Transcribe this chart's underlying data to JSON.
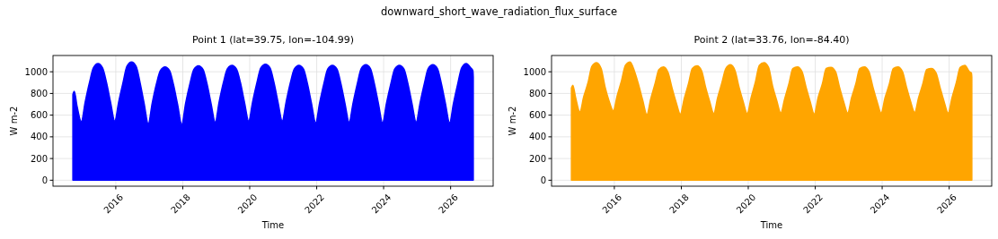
{
  "chart_data": [
    {
      "type": "area",
      "title": "Point 1 (lat=39.75, lon=-104.99)",
      "xlabel": "Time",
      "ylabel": "W m-2",
      "annotations": [
        "downward_short_wave_radiation_flux_surface"
      ],
      "x": [
        "2014-09-20",
        "2014-10-05",
        "2014-11-05",
        "2014-12-21",
        "2015-02-01",
        "2015-03-20",
        "2015-05-01",
        "2015-06-21",
        "2015-08-10",
        "2015-09-22",
        "2015-11-05",
        "2015-12-21",
        "2016-02-01",
        "2016-03-20",
        "2016-05-01",
        "2016-06-21",
        "2016-08-10",
        "2016-09-22",
        "2016-11-05",
        "2016-12-21",
        "2017-02-01",
        "2017-03-20",
        "2017-05-01",
        "2017-06-21",
        "2017-08-10",
        "2017-09-22",
        "2017-11-05",
        "2017-12-21",
        "2018-02-01",
        "2018-03-20",
        "2018-05-01",
        "2018-06-21",
        "2018-08-10",
        "2018-09-22",
        "2018-11-05",
        "2018-12-21",
        "2019-02-01",
        "2019-03-20",
        "2019-05-01",
        "2019-06-21",
        "2019-08-10",
        "2019-09-22",
        "2019-11-05",
        "2019-12-21",
        "2020-02-01",
        "2020-03-20",
        "2020-05-01",
        "2020-06-21",
        "2020-08-10",
        "2020-09-22",
        "2020-11-05",
        "2020-12-21",
        "2021-02-01",
        "2021-03-20",
        "2021-05-01",
        "2021-06-21",
        "2021-08-10",
        "2021-09-22",
        "2021-11-05",
        "2021-12-21",
        "2022-02-01",
        "2022-03-20",
        "2022-05-01",
        "2022-06-21",
        "2022-08-10",
        "2022-09-22",
        "2022-11-05",
        "2022-12-21",
        "2023-02-01",
        "2023-03-20",
        "2023-05-01",
        "2023-06-21",
        "2023-08-10",
        "2023-09-22",
        "2023-11-05",
        "2023-12-21",
        "2024-02-01",
        "2024-03-20",
        "2024-05-01",
        "2024-06-21",
        "2024-08-10",
        "2024-09-22",
        "2024-11-05",
        "2024-12-21",
        "2025-02-01",
        "2025-03-20",
        "2025-05-01",
        "2025-06-21",
        "2025-08-10",
        "2025-09-22",
        "2025-11-05",
        "2025-12-21",
        "2026-02-01",
        "2026-03-20",
        "2026-05-01",
        "2026-06-21",
        "2026-08-10",
        "2026-09-01",
        "2026-09-05"
      ],
      "series": [
        {
          "color": "#0000ff",
          "values": [
            790,
            820,
            680,
            540,
            720,
            900,
            1035,
            1075,
            1035,
            900,
            720,
            545,
            720,
            900,
            1050,
            1090,
            1050,
            900,
            710,
            520,
            710,
            890,
            1010,
            1045,
            1010,
            880,
            700,
            515,
            710,
            890,
            1020,
            1055,
            1020,
            890,
            710,
            535,
            720,
            900,
            1025,
            1060,
            1025,
            900,
            720,
            545,
            720,
            900,
            1035,
            1070,
            1035,
            900,
            720,
            545,
            720,
            900,
            1025,
            1060,
            1025,
            890,
            710,
            530,
            710,
            890,
            1025,
            1060,
            1025,
            890,
            710,
            535,
            710,
            890,
            1030,
            1065,
            1030,
            890,
            710,
            530,
            710,
            890,
            1025,
            1060,
            1025,
            890,
            710,
            535,
            710,
            890,
            1030,
            1065,
            1030,
            890,
            710,
            530,
            710,
            890,
            1035,
            1075,
            1035,
            1010,
            950
          ]
        }
      ],
      "xlim": [
        "2014-02-15",
        "2027-04-10"
      ],
      "xticks": [
        "2016",
        "2018",
        "2020",
        "2022",
        "2024",
        "2026"
      ],
      "ylim": [
        -55,
        1150
      ],
      "yticks": [
        0,
        200,
        400,
        600,
        800,
        1000
      ],
      "grid": true
    },
    {
      "type": "area",
      "title": "Point 2 (lat=33.76, lon=-84.40)",
      "xlabel": "Time",
      "ylabel": "W m-2",
      "x": [
        "2014-09-20",
        "2014-10-05",
        "2014-11-05",
        "2014-12-21",
        "2015-02-01",
        "2015-03-20",
        "2015-05-01",
        "2015-06-21",
        "2015-08-10",
        "2015-09-22",
        "2015-11-05",
        "2015-12-21",
        "2016-02-01",
        "2016-03-20",
        "2016-05-01",
        "2016-06-21",
        "2016-08-10",
        "2016-09-22",
        "2016-11-05",
        "2016-12-21",
        "2017-02-01",
        "2017-03-20",
        "2017-05-01",
        "2017-06-21",
        "2017-08-10",
        "2017-09-22",
        "2017-11-05",
        "2017-12-21",
        "2018-02-01",
        "2018-03-20",
        "2018-05-01",
        "2018-06-21",
        "2018-08-10",
        "2018-09-22",
        "2018-11-05",
        "2018-12-21",
        "2019-02-01",
        "2019-03-20",
        "2019-05-01",
        "2019-06-21",
        "2019-08-10",
        "2019-09-22",
        "2019-11-05",
        "2019-12-21",
        "2020-02-01",
        "2020-03-20",
        "2020-05-01",
        "2020-06-21",
        "2020-08-10",
        "2020-09-22",
        "2020-11-05",
        "2020-12-21",
        "2021-02-01",
        "2021-03-20",
        "2021-05-01",
        "2021-06-21",
        "2021-08-10",
        "2021-09-22",
        "2021-11-05",
        "2021-12-21",
        "2022-02-01",
        "2022-03-20",
        "2022-05-01",
        "2022-06-21",
        "2022-08-10",
        "2022-09-22",
        "2022-11-05",
        "2022-12-21",
        "2023-02-01",
        "2023-03-20",
        "2023-05-01",
        "2023-06-21",
        "2023-08-10",
        "2023-09-22",
        "2023-11-05",
        "2023-12-21",
        "2024-02-01",
        "2024-03-20",
        "2024-05-01",
        "2024-06-21",
        "2024-08-10",
        "2024-09-22",
        "2024-11-05",
        "2024-12-21",
        "2025-02-01",
        "2025-03-20",
        "2025-05-01",
        "2025-06-21",
        "2025-08-10",
        "2025-09-22",
        "2025-11-05",
        "2025-12-21",
        "2026-02-01",
        "2026-03-20",
        "2026-05-01",
        "2026-06-21",
        "2026-08-10",
        "2026-09-01",
        "2026-09-05"
      ],
      "series": [
        {
          "color": "#ffa500",
          "values": [
            850,
            875,
            760,
            630,
            770,
            900,
            1050,
            1085,
            1030,
            860,
            730,
            640,
            780,
            920,
            1060,
            1090,
            1000,
            880,
            740,
            605,
            750,
            890,
            1020,
            1045,
            990,
            850,
            720,
            610,
            750,
            890,
            1030,
            1055,
            1010,
            860,
            730,
            615,
            760,
            900,
            1030,
            1065,
            1010,
            860,
            730,
            615,
            760,
            910,
            1060,
            1085,
            1040,
            870,
            740,
            620,
            750,
            890,
            1030,
            1045,
            1000,
            860,
            730,
            610,
            760,
            890,
            1030,
            1040,
            1000,
            860,
            730,
            620,
            760,
            890,
            1030,
            1045,
            1000,
            860,
            730,
            620,
            760,
            890,
            1030,
            1045,
            1000,
            860,
            730,
            625,
            760,
            890,
            1020,
            1030,
            990,
            860,
            730,
            620,
            760,
            900,
            1040,
            1060,
            1000,
            990,
            950
          ]
        }
      ],
      "xlim": [
        "2014-02-15",
        "2027-04-10"
      ],
      "xticks": [
        "2016",
        "2018",
        "2020",
        "2022",
        "2024",
        "2026"
      ],
      "ylim": [
        -55,
        1150
      ],
      "yticks": [
        0,
        200,
        400,
        600,
        800,
        1000
      ],
      "grid": true
    }
  ]
}
